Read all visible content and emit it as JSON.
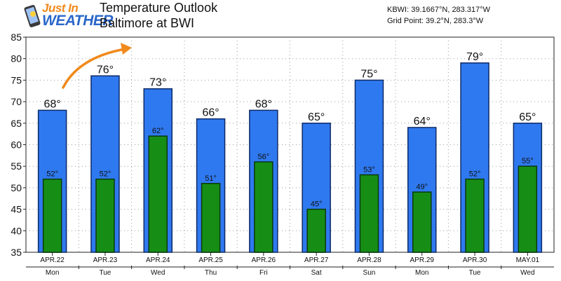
{
  "header": {
    "logo_line1": "Just In",
    "logo_line2": "WEATHER",
    "title": "Temperature Outlook",
    "subtitle": "Baltimore at BWI",
    "station_line1": "KBWI: 39.1667°N, 283.317°W",
    "station_line2": "Grid Point: 39.2°N, 283.3°W"
  },
  "colors": {
    "high_bar": "#2f79f0",
    "low_bar": "#168e16",
    "arrow": "#f08a1c"
  },
  "chart_data": {
    "type": "bar",
    "title": "Temperature Outlook",
    "subtitle": "Baltimore at BWI",
    "categories": [
      "APR.22",
      "APR.23",
      "APR.24",
      "APR.25",
      "APR.26",
      "APR.27",
      "APR.28",
      "APR.29",
      "APR.30",
      "MAY.01"
    ],
    "weekdays": [
      "Mon",
      "Tue",
      "Wed",
      "Thu",
      "Fri",
      "Sat",
      "Sun",
      "Mon",
      "Tue",
      "Wed"
    ],
    "series": [
      {
        "values": [
          68,
          76,
          73,
          66,
          68,
          65,
          75,
          64,
          79,
          65
        ],
        "labels": [
          "68°",
          "76°",
          "73°",
          "66°",
          "68°",
          "65°",
          "75°",
          "64°",
          "79°",
          "65°"
        ]
      },
      {
        "values": [
          52,
          52,
          62,
          51,
          56,
          45,
          53,
          49,
          52,
          55
        ],
        "labels": [
          "52°",
          "52°",
          "62°",
          "51°",
          "56°",
          "45°",
          "53°",
          "49°",
          "52°",
          "55°"
        ]
      }
    ],
    "ylim": [
      35,
      85
    ],
    "yticks": [
      "35",
      "40",
      "45",
      "50",
      "55",
      "60",
      "65",
      "70",
      "75",
      "80",
      "85"
    ],
    "grid": true,
    "annotation": "orange upward-curving arrow"
  }
}
